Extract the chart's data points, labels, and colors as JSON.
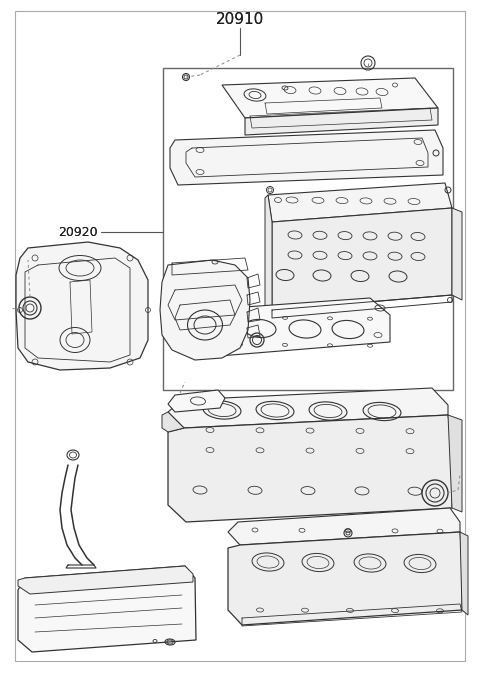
{
  "title": "20910",
  "label2": "20920",
  "bg_color": "#ffffff",
  "line_color": "#333333",
  "light_line": "#888888",
  "dashed_color": "#888888",
  "fig_width": 4.8,
  "fig_height": 6.76,
  "dpi": 100
}
